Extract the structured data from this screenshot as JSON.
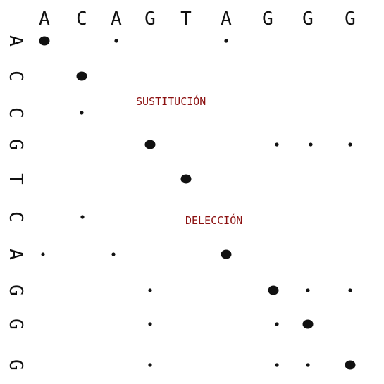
{
  "colors": {
    "ink": "#111111",
    "annotation": "#8b1010",
    "background": "#ffffff"
  },
  "top_sequence": [
    "A",
    "C",
    "A",
    "G",
    "T",
    "A",
    "G",
    "G",
    "G"
  ],
  "left_sequence": [
    "A",
    "C",
    "C",
    "G",
    "T",
    "C",
    "A",
    "G",
    "G",
    "G"
  ],
  "annotations": {
    "substitution": "SUSTITUCIÓN",
    "deletion": "DELECCIÓN"
  },
  "dots": [
    {
      "row": 1,
      "col": 1,
      "kind": "large"
    },
    {
      "row": 1,
      "col": 3,
      "kind": "small"
    },
    {
      "row": 1,
      "col": 6,
      "kind": "small"
    },
    {
      "row": 2,
      "col": 2,
      "kind": "large"
    },
    {
      "row": 3,
      "col": 2,
      "kind": "small"
    },
    {
      "row": 4,
      "col": 4,
      "kind": "large"
    },
    {
      "row": 4,
      "col": 7,
      "kind": "small"
    },
    {
      "row": 4,
      "col": 8,
      "kind": "small"
    },
    {
      "row": 4,
      "col": 9,
      "kind": "small"
    },
    {
      "row": 5,
      "col": 5,
      "kind": "large"
    },
    {
      "row": 6,
      "col": 2,
      "kind": "small"
    },
    {
      "row": 7,
      "col": 1,
      "kind": "small"
    },
    {
      "row": 7,
      "col": 3,
      "kind": "small"
    },
    {
      "row": 7,
      "col": 6,
      "kind": "large"
    },
    {
      "row": 8,
      "col": 4,
      "kind": "small"
    },
    {
      "row": 8,
      "col": 7,
      "kind": "large"
    },
    {
      "row": 8,
      "col": 8,
      "kind": "small"
    },
    {
      "row": 8,
      "col": 9,
      "kind": "small"
    },
    {
      "row": 9,
      "col": 4,
      "kind": "small"
    },
    {
      "row": 9,
      "col": 7,
      "kind": "small"
    },
    {
      "row": 9,
      "col": 8,
      "kind": "large"
    },
    {
      "row": 10,
      "col": 4,
      "kind": "small"
    },
    {
      "row": 10,
      "col": 7,
      "kind": "small"
    },
    {
      "row": 10,
      "col": 8,
      "kind": "small"
    },
    {
      "row": 10,
      "col": 9,
      "kind": "large"
    }
  ]
}
